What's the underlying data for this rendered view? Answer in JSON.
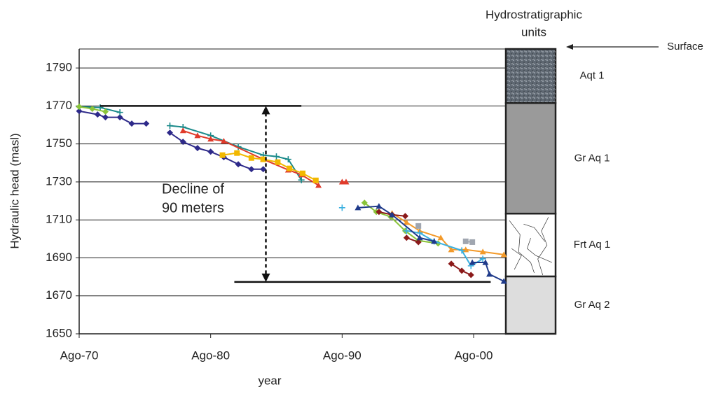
{
  "chart_data": {
    "type": "line",
    "y_label": "Hydraulic head (masl)",
    "x_label": "year",
    "xlim": [
      1970,
      2002.45
    ],
    "ylim": [
      1650,
      1800
    ],
    "xticks": [
      {
        "value": 1970,
        "label": "Ago-70"
      },
      {
        "value": 1980,
        "label": "Ago-80"
      },
      {
        "value": 1990,
        "label": "Ago-90"
      },
      {
        "value": 2000,
        "label": "Ago-00"
      }
    ],
    "yticks": [
      1650,
      1670,
      1690,
      1710,
      1730,
      1750,
      1770,
      1790
    ],
    "grid": true,
    "series": [
      {
        "color": "#2e2a8a",
        "marker": "diamond",
        "x": [
          1970.0,
          1971.4,
          1972.0,
          1973.1,
          1974.0,
          1975.1,
          null,
          1976.9,
          1977.9,
          1979.0,
          1980.0,
          1981.0,
          1982.1,
          1983.1,
          1984.0
        ],
        "values": [
          1767.3,
          1765.5,
          1764.0,
          1764.0,
          1760.7,
          1760.7,
          null,
          1755.9,
          1751.1,
          1747.8,
          1745.9,
          1743.0,
          1739.3,
          1736.7,
          1736.7
        ]
      },
      {
        "color": "#1a8a8a",
        "marker": "plus",
        "x": [
          1970.0,
          1971.6,
          1973.1,
          null,
          1976.9,
          1977.9,
          1980.0,
          1982.1,
          1984.0,
          1985.0,
          1985.9,
          1986.9
        ],
        "values": [
          1769.6,
          1769.2,
          1766.6,
          null,
          1759.6,
          1758.9,
          1754.4,
          1748.5,
          1744.1,
          1743.4,
          1741.9,
          1731.0
        ]
      },
      {
        "color": "#e03a2a",
        "marker": "triangle",
        "x": [
          1977.9,
          1979.0,
          1980.0,
          1981.0,
          1984.0,
          1985.9,
          1986.9,
          1988.2,
          null,
          1990.0,
          1990.3
        ],
        "values": [
          1757.0,
          1754.4,
          1752.6,
          1751.5,
          1741.9,
          1736.3,
          1733.8,
          1728.2,
          null,
          1730.0,
          1730.0
        ]
      },
      {
        "color": "#f2b800",
        "marker": "square",
        "x": [
          1980.9,
          1982.0,
          1983.1,
          1984.0,
          1985.1,
          1986.0,
          1987.0,
          1988.0
        ],
        "values": [
          1744.1,
          1745.2,
          1742.6,
          1741.9,
          1740.4,
          1737.1,
          1734.5,
          1730.8
        ]
      },
      {
        "color": "#8ac43a",
        "marker": "diamond",
        "x": [
          1970.0,
          1971.0,
          1972.0,
          null,
          1991.7,
          1992.6,
          1993.7,
          1994.8,
          1995.8,
          1997.3
        ],
        "values": [
          1769.6,
          1768.5,
          1767.0,
          null,
          1719.0,
          1714.2,
          1711.6,
          1704.2,
          1699.1,
          1697.6
        ]
      },
      {
        "color": "#f39a2a",
        "marker": "triangle",
        "x": [
          1993.8,
          1994.9,
          1995.9,
          1997.5,
          1998.3,
          1999.4,
          2000.7,
          2002.3
        ],
        "values": [
          1713.5,
          1708.7,
          1704.2,
          1700.6,
          1694.3,
          1694.3,
          1693.2,
          1691.7
        ]
      },
      {
        "color": "#8b1a1a",
        "marker": "diamond",
        "x": [
          1992.8,
          1993.8,
          1994.8,
          null,
          1994.9,
          1995.8,
          null,
          1998.3,
          1999.1,
          1999.8
        ],
        "values": [
          1714.2,
          1712.7,
          1712.0,
          null,
          1700.6,
          1698.3,
          null,
          1686.9,
          1683.2,
          1681.0
        ]
      },
      {
        "color": "#3ab0e0",
        "marker": "plus",
        "x": [
          1990.0,
          null,
          1994.9,
          1995.9,
          1997.0,
          1999.1,
          1999.8,
          2000.7
        ],
        "values": [
          1716.4,
          null,
          1704.2,
          1703.1,
          1698.7,
          1693.9,
          1685.8,
          1689.5
        ]
      },
      {
        "color": "#1f3a8a",
        "marker": "triangle",
        "x": [
          1991.2,
          1992.8,
          1993.8,
          1995.9,
          1997.0,
          null,
          1999.9,
          2000.9,
          2001.2,
          2002.3
        ],
        "values": [
          1716.4,
          1717.2,
          1712.7,
          1700.6,
          1698.7,
          null,
          1687.6,
          1687.6,
          1681.4,
          1677.7
        ]
      },
      {
        "color": "#a0a6b0",
        "marker": "square",
        "x": [
          1995.8,
          null,
          1999.4,
          1999.9
        ],
        "values": [
          1706.8,
          null,
          1698.7,
          1698.3
        ]
      }
    ],
    "annotation_lines": [
      {
        "x": [
          1971.6,
          1986.9
        ],
        "y": [
          1770,
          1770
        ]
      },
      {
        "x": [
          1981.8,
          2001.3
        ],
        "y": [
          1677.3,
          1677.3
        ]
      }
    ],
    "arrow": {
      "x": 1984.2,
      "from": 1770,
      "to": 1677.3
    },
    "annotation_text": [
      "Decline of",
      "90 meters"
    ],
    "units_title": [
      "Hydrostratigraphic",
      "units"
    ],
    "surface_label": "Surface",
    "units": [
      {
        "name": "Aqt 1",
        "top": 1800,
        "bottom": 1771.5,
        "color": "#5f6872"
      },
      {
        "name": "Gr Aq 1",
        "top": 1771.5,
        "bottom": 1713.3,
        "color": "#9a9a9a"
      },
      {
        "name": "Frt Aq 1",
        "top": 1713.3,
        "bottom": 1680.2,
        "color": "#ffffff"
      },
      {
        "name": "Gr Aq 2",
        "top": 1680.2,
        "bottom": 1650,
        "color": "#dddddd"
      }
    ]
  }
}
